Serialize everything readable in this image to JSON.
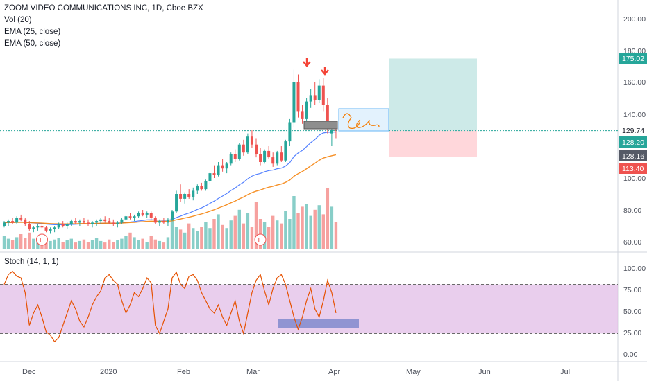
{
  "chart_data": {
    "type": "candlestick",
    "title": "ZOOM VIDEO COMMUNICATIONS INC, 1D, Cboe BZX",
    "indicators": [
      "Vol (20)",
      "EMA (25, close)",
      "EMA (50, close)"
    ],
    "price_axis": {
      "ticks": [
        "200.00",
        "180.00",
        "160.00",
        "140.00",
        "100.00",
        "80.00",
        "60.00"
      ],
      "ylim": [
        55,
        210
      ]
    },
    "price_badges": {
      "target": "175.02",
      "last_close_line": "129.74",
      "close_1": "128.20",
      "close_2": "128.16",
      "stop": "113.40"
    },
    "time_axis": [
      "Dec",
      "2020",
      "Feb",
      "Mar",
      "Apr",
      "May",
      "Jun",
      "Jul"
    ],
    "earnings_markers": [
      "E",
      "E"
    ],
    "colors": {
      "up": "#26a69a",
      "down": "#ef5350",
      "ema25": "#2962ff",
      "ema50": "#f57c00",
      "target_zone": "#b2dfdb",
      "stop_zone": "#ffcdd2",
      "stoch_band": "#e1bee7",
      "stoch_line": "#e65100",
      "selection_box": "#7986cb",
      "arrow": "#f44336"
    },
    "ohlc": [
      [
        70,
        73,
        69,
        72
      ],
      [
        72,
        74,
        70,
        73
      ],
      [
        73,
        75,
        71,
        72
      ],
      [
        72,
        76,
        71,
        75
      ],
      [
        75,
        77,
        73,
        74
      ],
      [
        74,
        75,
        70,
        71
      ],
      [
        71,
        73,
        67,
        68
      ],
      [
        68,
        70,
        66,
        69
      ],
      [
        69,
        71,
        67,
        70
      ],
      [
        70,
        72,
        68,
        69
      ],
      [
        69,
        70,
        66,
        67
      ],
      [
        67,
        69,
        65,
        68
      ],
      [
        68,
        70,
        66,
        69
      ],
      [
        69,
        72,
        68,
        71
      ],
      [
        71,
        73,
        69,
        70
      ],
      [
        70,
        72,
        68,
        71
      ],
      [
        71,
        74,
        70,
        73
      ],
      [
        73,
        75,
        71,
        72
      ],
      [
        72,
        74,
        70,
        73
      ],
      [
        73,
        75,
        71,
        72
      ],
      [
        72,
        74,
        70,
        71
      ],
      [
        71,
        73,
        69,
        72
      ],
      [
        72,
        74,
        70,
        73
      ],
      [
        73,
        75,
        71,
        74
      ],
      [
        74,
        76,
        72,
        73
      ],
      [
        73,
        75,
        71,
        72
      ],
      [
        72,
        74,
        70,
        71
      ],
      [
        71,
        73,
        69,
        72
      ],
      [
        72,
        75,
        71,
        74
      ],
      [
        74,
        77,
        73,
        76
      ],
      [
        76,
        78,
        74,
        75
      ],
      [
        75,
        77,
        73,
        76
      ],
      [
        76,
        79,
        75,
        78
      ],
      [
        78,
        80,
        76,
        77
      ],
      [
        77,
        79,
        75,
        78
      ],
      [
        78,
        79,
        74,
        75
      ],
      [
        75,
        76,
        71,
        72
      ],
      [
        72,
        74,
        70,
        73
      ],
      [
        73,
        75,
        71,
        72
      ],
      [
        72,
        75,
        70,
        74
      ],
      [
        74,
        80,
        73,
        79
      ],
      [
        79,
        92,
        78,
        90
      ],
      [
        90,
        96,
        85,
        87
      ],
      [
        87,
        91,
        84,
        90
      ],
      [
        90,
        93,
        87,
        88
      ],
      [
        88,
        94,
        86,
        92
      ],
      [
        92,
        96,
        90,
        95
      ],
      [
        95,
        97,
        92,
        93
      ],
      [
        93,
        99,
        92,
        98
      ],
      [
        98,
        104,
        96,
        103
      ],
      [
        103,
        108,
        100,
        102
      ],
      [
        102,
        110,
        101,
        108
      ],
      [
        108,
        112,
        104,
        106
      ],
      [
        106,
        110,
        103,
        109
      ],
      [
        109,
        116,
        108,
        115
      ],
      [
        115,
        118,
        110,
        112
      ],
      [
        112,
        122,
        111,
        121
      ],
      [
        121,
        124,
        114,
        116
      ],
      [
        116,
        128,
        115,
        126
      ],
      [
        126,
        130,
        119,
        121
      ],
      [
        121,
        125,
        113,
        115
      ],
      [
        115,
        119,
        108,
        110
      ],
      [
        110,
        118,
        109,
        117
      ],
      [
        117,
        120,
        112,
        113
      ],
      [
        113,
        116,
        107,
        109
      ],
      [
        109,
        117,
        108,
        116
      ],
      [
        116,
        120,
        110,
        111
      ],
      [
        111,
        124,
        110,
        123
      ],
      [
        123,
        137,
        120,
        135
      ],
      [
        135,
        168,
        132,
        160
      ],
      [
        160,
        165,
        138,
        142
      ],
      [
        142,
        146,
        134,
        137
      ],
      [
        137,
        150,
        136,
        148
      ],
      [
        148,
        156,
        144,
        152
      ],
      [
        152,
        160,
        146,
        149
      ],
      [
        149,
        162,
        147,
        158
      ],
      [
        158,
        163,
        142,
        146
      ],
      [
        146,
        150,
        128,
        133
      ],
      [
        128,
        135,
        120,
        130
      ],
      [
        130,
        135,
        125,
        129.74
      ]
    ],
    "volume": [
      18,
      14,
      12,
      16,
      20,
      15,
      22,
      14,
      12,
      18,
      16,
      11,
      13,
      15,
      10,
      12,
      14,
      9,
      11,
      13,
      10,
      12,
      15,
      11,
      9,
      13,
      10,
      12,
      14,
      18,
      22,
      16,
      12,
      14,
      10,
      18,
      13,
      11,
      9,
      16,
      42,
      30,
      26,
      22,
      34,
      28,
      24,
      30,
      36,
      28,
      40,
      46,
      32,
      28,
      38,
      44,
      52,
      34,
      48,
      30,
      62,
      40,
      36,
      30,
      44,
      38,
      34,
      50,
      40,
      70,
      48,
      56,
      60,
      44,
      52,
      58,
      46,
      80,
      56,
      36
    ],
    "stochastic": {
      "label": "Stoch (14, 1, 1)",
      "axis": [
        "100.00",
        "75.00",
        "50.00",
        "25.00",
        "0.00"
      ],
      "upper": 80,
      "lower": 20,
      "k": [
        80,
        92,
        96,
        90,
        88,
        70,
        30,
        45,
        55,
        40,
        22,
        18,
        10,
        15,
        30,
        45,
        60,
        50,
        35,
        28,
        40,
        55,
        65,
        72,
        88,
        92,
        85,
        80,
        60,
        45,
        55,
        70,
        65,
        75,
        88,
        82,
        30,
        20,
        35,
        50,
        88,
        95,
        80,
        75,
        90,
        92,
        85,
        70,
        60,
        50,
        45,
        55,
        40,
        30,
        45,
        60,
        35,
        20,
        45,
        70,
        85,
        92,
        72,
        55,
        75,
        88,
        92,
        80,
        60,
        40,
        25,
        40,
        60,
        75,
        50,
        40,
        60,
        85,
        70,
        45
      ]
    }
  }
}
